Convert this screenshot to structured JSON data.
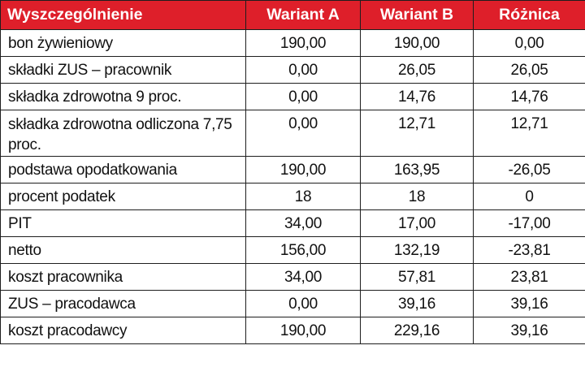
{
  "table": {
    "header": {
      "col0": "Wyszczególnienie",
      "col1": "Wariant A",
      "col2": "Wariant B",
      "col3": "Różnica"
    },
    "rows": [
      {
        "label": "bon żywieniowy",
        "a": "190,00",
        "b": "190,00",
        "diff": "0,00"
      },
      {
        "label": "składki ZUS – pracownik",
        "a": "0,00",
        "b": "26,05",
        "diff": "26,05"
      },
      {
        "label": "składka zdrowotna 9 proc.",
        "a": "0,00",
        "b": "14,76",
        "diff": "14,76"
      },
      {
        "label": "składka zdrowotna odliczona 7,75 proc.",
        "a": "0,00",
        "b": "12,71",
        "diff": "12,71"
      },
      {
        "label": "podstawa opodatkowania",
        "a": "190,00",
        "b": "163,95",
        "diff": "-26,05"
      },
      {
        "label": "procent podatek",
        "a": "18",
        "b": "18",
        "diff": "0"
      },
      {
        "label": "PIT",
        "a": "34,00",
        "b": "17,00",
        "diff": "-17,00"
      },
      {
        "label": "netto",
        "a": "156,00",
        "b": "132,19",
        "diff": "-23,81"
      },
      {
        "label": "koszt pracownika",
        "a": "34,00",
        "b": "57,81",
        "diff": "23,81"
      },
      {
        "label": "ZUS – pracodawca",
        "a": "0,00",
        "b": "39,16",
        "diff": "39,16"
      },
      {
        "label": "koszt pracodawcy",
        "a": "190,00",
        "b": "229,16",
        "diff": "39,16"
      }
    ]
  },
  "colors": {
    "header_bg": "#de1f2a",
    "header_text": "#ffffff",
    "border": "#1e1e1e"
  }
}
